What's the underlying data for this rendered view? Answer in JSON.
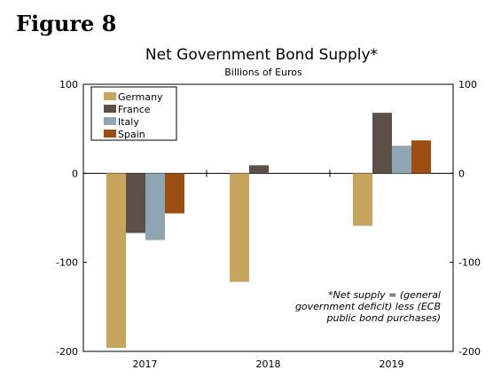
{
  "figure_label": "Figure 8",
  "chart_data": {
    "type": "bar",
    "title": "Net Government Bond Supply*",
    "subtitle": "Billions of Euros",
    "categories": [
      "2017",
      "2018",
      "2019"
    ],
    "series": [
      {
        "name": "Germany",
        "color": "#c8a55f",
        "values": [
          -196,
          -122,
          -59
        ]
      },
      {
        "name": "France",
        "color": "#5d5048",
        "values": [
          -67,
          9,
          68
        ]
      },
      {
        "name": "Italy",
        "color": "#8fa5b2",
        "values": [
          -75,
          null,
          31
        ]
      },
      {
        "name": "Spain",
        "color": "#9c4e12",
        "values": [
          -45,
          null,
          37
        ]
      }
    ],
    "ylim": [
      -200,
      100
    ],
    "yticks": [
      100,
      0,
      -100,
      -200
    ],
    "legend_position": "top-left",
    "note": [
      "*Net supply = (general",
      "government deficit) less (ECB",
      "public bond purchases)"
    ]
  }
}
